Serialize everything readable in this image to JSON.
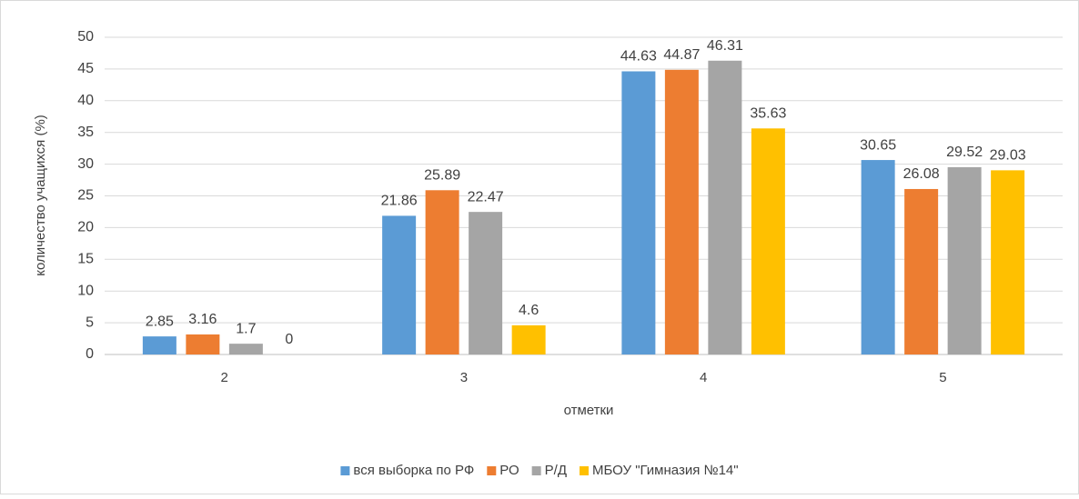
{
  "chart_data": {
    "type": "bar",
    "x_label": "отметки",
    "y_label": "количество учащихся (%)",
    "categories": [
      "2",
      "3",
      "4",
      "5"
    ],
    "series": [
      {
        "name": "вся выборка по РФ",
        "color": "#5b9bd5",
        "values": [
          2.85,
          21.86,
          44.63,
          30.65
        ]
      },
      {
        "name": "РО",
        "color": "#ed7d31",
        "values": [
          3.16,
          25.89,
          44.87,
          26.08
        ]
      },
      {
        "name": "Р/Д",
        "color": "#a5a5a5",
        "values": [
          1.7,
          22.47,
          46.31,
          29.52
        ]
      },
      {
        "name": "МБОУ \"Гимназия №14\"",
        "color": "#ffc000",
        "values": [
          0,
          4.6,
          35.63,
          29.03
        ]
      }
    ],
    "ylim": [
      0,
      50
    ],
    "yticks": [
      0,
      5,
      10,
      15,
      20,
      25,
      30,
      35,
      40,
      45,
      50
    ],
    "grid": true,
    "legend": "bottom"
  }
}
